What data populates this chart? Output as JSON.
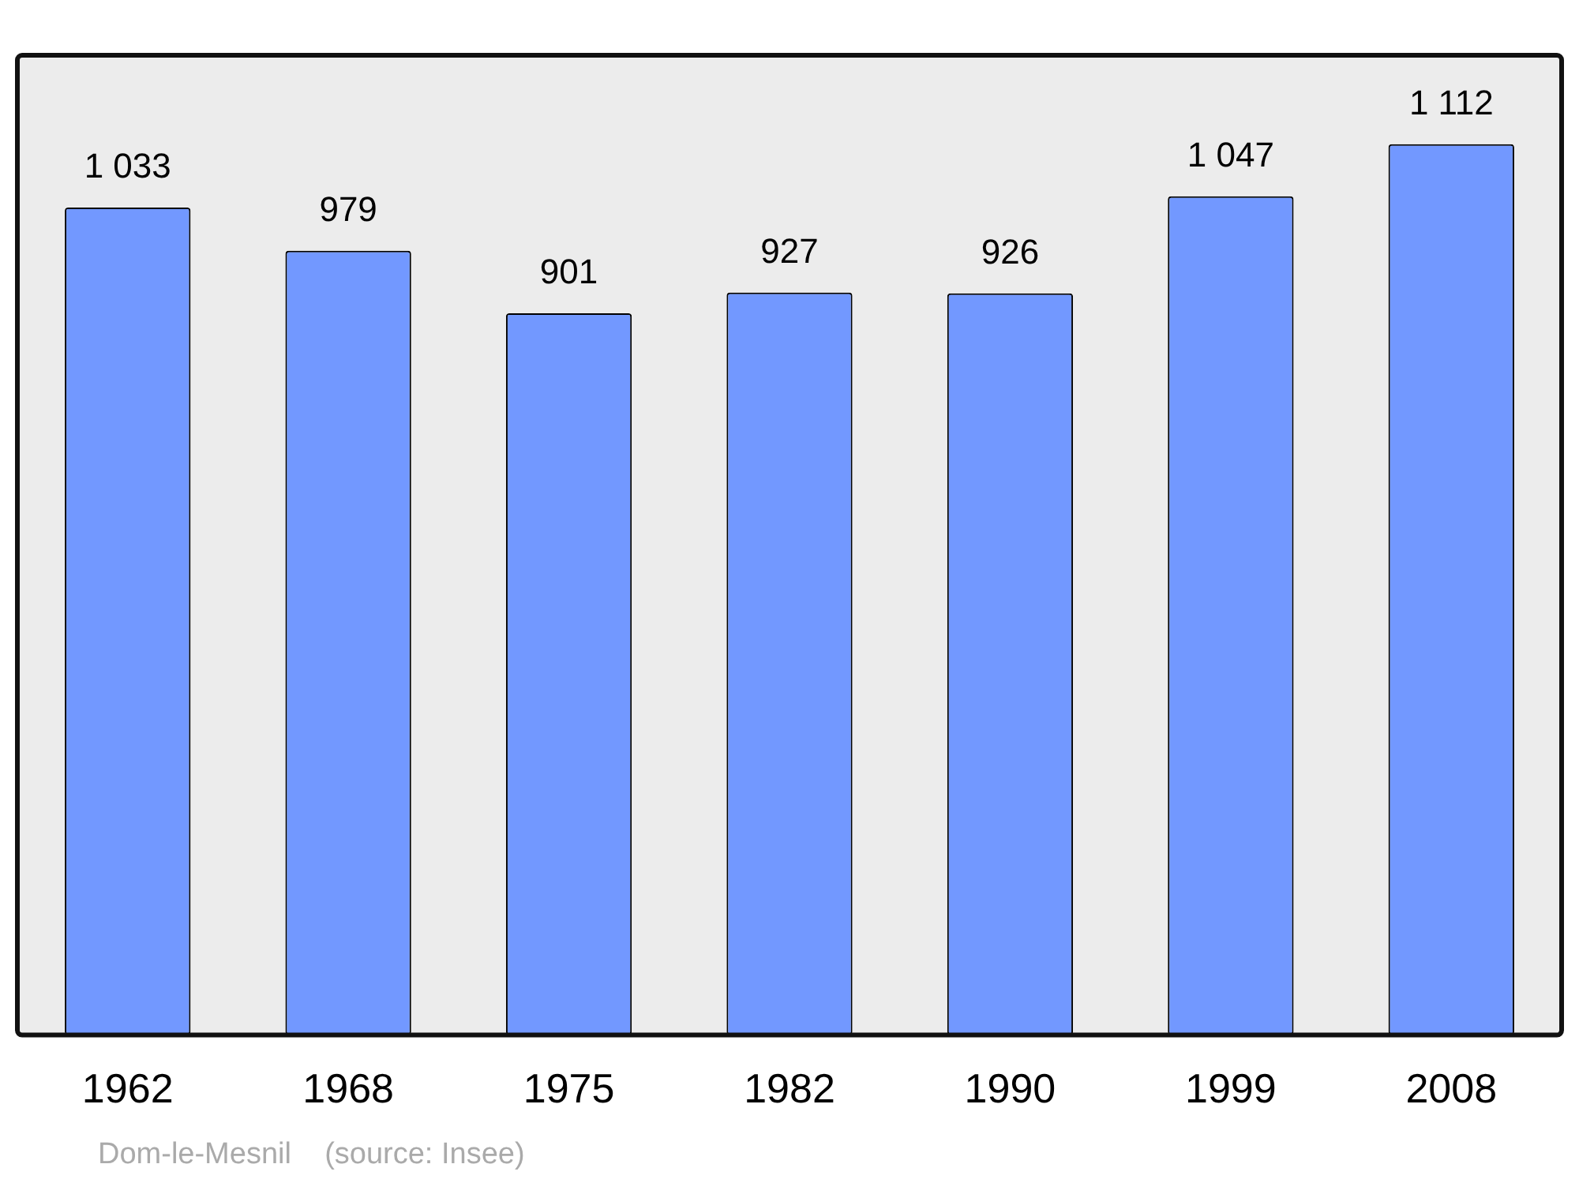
{
  "chart_data": {
    "type": "bar",
    "categories": [
      "1962",
      "1968",
      "1975",
      "1982",
      "1990",
      "1999",
      "2008"
    ],
    "values": [
      1033,
      979,
      901,
      927,
      926,
      1047,
      1112
    ],
    "value_labels": [
      "1 033",
      "979",
      "901",
      "927",
      "926",
      "1 047",
      "1 112"
    ],
    "color": "#7298ff",
    "grid": false,
    "legend": false,
    "annotations": [
      "Dom-le-Mesnil    (source: Insee)"
    ]
  }
}
